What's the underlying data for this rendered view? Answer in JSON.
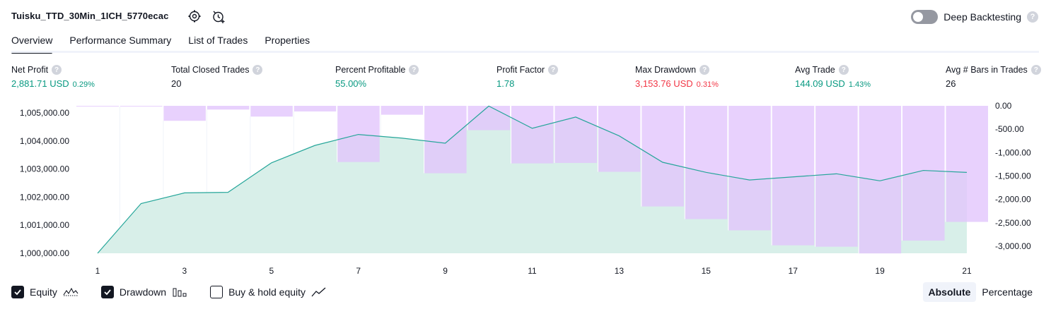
{
  "header": {
    "strategy_title": "Tuisku_TTD_30Min_1ICH_5770ecac",
    "settings_icon": "gear-icon",
    "alert_icon": "alarm-clock-plus-icon",
    "deep_backtesting_label": "Deep Backtesting",
    "deep_backtesting_enabled": false,
    "help_glyph": "?"
  },
  "tabs": [
    {
      "label": "Overview",
      "active": true
    },
    {
      "label": "Performance Summary",
      "active": false
    },
    {
      "label": "List of Trades",
      "active": false
    },
    {
      "label": "Properties",
      "active": false
    }
  ],
  "metrics": [
    {
      "label": "Net Profit",
      "value": "2,881.71 USD",
      "pct": "0.29%",
      "color": "#089981"
    },
    {
      "label": "Total Closed Trades",
      "value": "20",
      "pct": "",
      "color": "#131722"
    },
    {
      "label": "Percent Profitable",
      "value": "55.00%",
      "pct": "",
      "color": "#089981"
    },
    {
      "label": "Profit Factor",
      "value": "1.78",
      "pct": "",
      "color": "#089981"
    },
    {
      "label": "Max Drawdown",
      "value": "3,153.76 USD",
      "pct": "0.31%",
      "color": "#f23645"
    },
    {
      "label": "Avg Trade",
      "value": "144.09 USD",
      "pct": "1.43%",
      "color": "#089981"
    },
    {
      "label": "Avg # Bars in Trades",
      "value": "26",
      "pct": "",
      "color": "#131722"
    }
  ],
  "chart_data": {
    "type": "area",
    "x": [
      1,
      2,
      3,
      4,
      5,
      6,
      7,
      8,
      9,
      10,
      11,
      12,
      13,
      14,
      15,
      16,
      17,
      18,
      19,
      20,
      21
    ],
    "x_tick_labels": [
      "1",
      "3",
      "5",
      "7",
      "9",
      "11",
      "13",
      "15",
      "17",
      "19",
      "21"
    ],
    "left_axis_ticks": [
      "1,005,000.00",
      "1,004,000.00",
      "1,003,000.00",
      "1,002,000.00",
      "1,001,000.00",
      "1,000,000.00"
    ],
    "left_ylim": [
      1000000,
      1005250
    ],
    "right_axis_ticks": [
      "0.00",
      "-500.00",
      "-1,000.00",
      "-1,500.00",
      "-2,000.00",
      "-2,500.00",
      "-3,000.00"
    ],
    "right_ylim": [
      -3150,
      0
    ],
    "grid": "vertical",
    "series": [
      {
        "name": "Equity",
        "kind": "area-line",
        "color": "#26a69a",
        "fill": "#d8efe9",
        "values": [
          1000000,
          1001770,
          1002150,
          1002170,
          1003220,
          1003840,
          1004230,
          1004100,
          1003920,
          1005240,
          1004450,
          1004850,
          1004180,
          1003240,
          1002880,
          1002610,
          1002720,
          1002830,
          1002580,
          1002950,
          1002880
        ]
      },
      {
        "name": "Drawdown",
        "kind": "bars",
        "color": "#e1c4fd",
        "values": [
          -10,
          -10,
          -320,
          -80,
          -230,
          -120,
          -1200,
          -190,
          -1440,
          -520,
          -1230,
          -1220,
          -1410,
          -2150,
          -2420,
          -2660,
          -2980,
          -3010,
          -3153.76,
          -2880,
          -2480
        ]
      }
    ]
  },
  "legend": [
    {
      "label": "Equity",
      "checked": true,
      "icon": "equity-line-icon"
    },
    {
      "label": "Drawdown",
      "checked": true,
      "icon": "drawdown-bars-icon"
    },
    {
      "label": "Buy & hold equity",
      "checked": false,
      "icon": "buy-hold-line-icon"
    }
  ],
  "scale": {
    "absolute_label": "Absolute",
    "percentage_label": "Percentage",
    "selected": "Absolute"
  }
}
